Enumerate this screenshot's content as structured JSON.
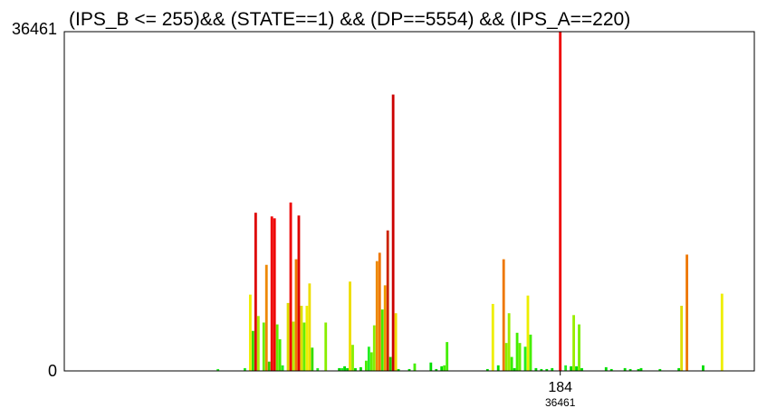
{
  "chart_data": {
    "type": "bar",
    "title": "(IPS_B <= 255)&& (STATE==1) && (DP==5554) && (IPS_A==220)",
    "xlabel": "",
    "ylabel": "",
    "ylim": [
      0,
      36461
    ],
    "y_tick_labels": [
      "36461",
      "0"
    ],
    "x_tick_label": "184",
    "x_tick_value": 184,
    "x_sublabel": "36461",
    "xlim": [
      0,
      256
    ],
    "grid": false,
    "legend": "none",
    "colors": {
      "low": "#00dd00",
      "mid_low": "#88ff00",
      "mid": "#ffee00",
      "mid_high": "#ff7700",
      "high": "#ee0000"
    },
    "bars": [
      {
        "x": 57,
        "value": 200,
        "color": "#22ee22"
      },
      {
        "x": 67,
        "value": 300,
        "color": "#22ee22"
      },
      {
        "x": 69,
        "value": 8200,
        "color": "#eeee00"
      },
      {
        "x": 70,
        "value": 4300,
        "color": "#33dd00"
      },
      {
        "x": 71,
        "value": 17000,
        "color": "#dd0000"
      },
      {
        "x": 72,
        "value": 5900,
        "color": "#aaee00"
      },
      {
        "x": 74,
        "value": 5200,
        "color": "#66ee00"
      },
      {
        "x": 75,
        "value": 11400,
        "color": "#ee8800"
      },
      {
        "x": 76,
        "value": 1000,
        "color": "#33cc00"
      },
      {
        "x": 77,
        "value": 16600,
        "color": "#ee0000"
      },
      {
        "x": 78,
        "value": 16400,
        "color": "#ee0000"
      },
      {
        "x": 79,
        "value": 5000,
        "color": "#66ee00"
      },
      {
        "x": 80,
        "value": 3400,
        "color": "#44ee00"
      },
      {
        "x": 81,
        "value": 600,
        "color": "#22ee22"
      },
      {
        "x": 83,
        "value": 7300,
        "color": "#dddd00"
      },
      {
        "x": 84,
        "value": 18100,
        "color": "#ee0000"
      },
      {
        "x": 85,
        "value": 5300,
        "color": "#bbee00"
      },
      {
        "x": 86,
        "value": 12000,
        "color": "#ee7700"
      },
      {
        "x": 87,
        "value": 16700,
        "color": "#dd0000"
      },
      {
        "x": 88,
        "value": 7000,
        "color": "#dddd00"
      },
      {
        "x": 89,
        "value": 5200,
        "color": "#66ee00"
      },
      {
        "x": 90,
        "value": 7000,
        "color": "#eeee00"
      },
      {
        "x": 91,
        "value": 9400,
        "color": "#eedd00"
      },
      {
        "x": 92,
        "value": 2500,
        "color": "#33dd00"
      },
      {
        "x": 94,
        "value": 300,
        "color": "#22ee22"
      },
      {
        "x": 97,
        "value": 5200,
        "color": "#88ee00"
      },
      {
        "x": 103,
        "value": 300,
        "color": "#22ee22"
      },
      {
        "x": 106,
        "value": 9600,
        "color": "#eedd00"
      },
      {
        "x": 107,
        "value": 2800,
        "color": "#88ee00"
      },
      {
        "x": 112,
        "value": 1100,
        "color": "#44ee00"
      },
      {
        "x": 113,
        "value": 2600,
        "color": "#22ee22"
      },
      {
        "x": 114,
        "value": 2000,
        "color": "#66ee00"
      },
      {
        "x": 115,
        "value": 4900,
        "color": "#88ee00"
      },
      {
        "x": 116,
        "value": 11800,
        "color": "#ee8800"
      },
      {
        "x": 117,
        "value": 12700,
        "color": "#ee7700"
      },
      {
        "x": 118,
        "value": 6600,
        "color": "#44ee00"
      },
      {
        "x": 119,
        "value": 9200,
        "color": "#ee9900"
      },
      {
        "x": 120,
        "value": 15100,
        "color": "#cc2200"
      },
      {
        "x": 121,
        "value": 1500,
        "color": "#22cc00"
      },
      {
        "x": 122,
        "value": 29700,
        "color": "#cc0000"
      },
      {
        "x": 123,
        "value": 6200,
        "color": "#eedd00"
      },
      {
        "x": 130,
        "value": 800,
        "color": "#44ee00"
      },
      {
        "x": 141,
        "value": 600,
        "color": "#44ee00"
      },
      {
        "x": 142,
        "value": 3100,
        "color": "#44ee00"
      },
      {
        "x": 159,
        "value": 7200,
        "color": "#eeee00"
      },
      {
        "x": 163,
        "value": 12000,
        "color": "#ee7700"
      },
      {
        "x": 164,
        "value": 3000,
        "color": "#88ee00"
      },
      {
        "x": 165,
        "value": 6200,
        "color": "#99ee00"
      },
      {
        "x": 166,
        "value": 1500,
        "color": "#33ee00"
      },
      {
        "x": 168,
        "value": 4100,
        "color": "#44ee00"
      },
      {
        "x": 169,
        "value": 3000,
        "color": "#66ee00"
      },
      {
        "x": 171,
        "value": 2600,
        "color": "#22ee22"
      },
      {
        "x": 172,
        "value": 8100,
        "color": "#eeee00"
      },
      {
        "x": 173,
        "value": 3900,
        "color": "#44ee00"
      },
      {
        "x": 184,
        "value": 36461,
        "color": "#ee0000"
      },
      {
        "x": 186,
        "value": 600,
        "color": "#22ee22"
      },
      {
        "x": 189,
        "value": 6000,
        "color": "#99ee00"
      },
      {
        "x": 191,
        "value": 5000,
        "color": "#77ee00"
      },
      {
        "x": 229,
        "value": 7000,
        "color": "#dddd00"
      },
      {
        "x": 231,
        "value": 12500,
        "color": "#ee7700"
      },
      {
        "x": 244,
        "value": 8300,
        "color": "#eeee00"
      }
    ],
    "small_bars": [
      {
        "x": 102,
        "value": 300
      },
      {
        "x": 104,
        "value": 500
      },
      {
        "x": 105,
        "value": 300
      },
      {
        "x": 108,
        "value": 300
      },
      {
        "x": 110,
        "value": 400
      },
      {
        "x": 124,
        "value": 200
      },
      {
        "x": 128,
        "value": 200
      },
      {
        "x": 136,
        "value": 900
      },
      {
        "x": 138,
        "value": 200
      },
      {
        "x": 140,
        "value": 500
      },
      {
        "x": 157,
        "value": 200
      },
      {
        "x": 161,
        "value": 600
      },
      {
        "x": 167,
        "value": 300
      },
      {
        "x": 175,
        "value": 300
      },
      {
        "x": 177,
        "value": 200
      },
      {
        "x": 179,
        "value": 200
      },
      {
        "x": 181,
        "value": 300
      },
      {
        "x": 188,
        "value": 500
      },
      {
        "x": 190,
        "value": 500
      },
      {
        "x": 192,
        "value": 300
      },
      {
        "x": 201,
        "value": 400
      },
      {
        "x": 203,
        "value": 200
      },
      {
        "x": 208,
        "value": 300
      },
      {
        "x": 210,
        "value": 200
      },
      {
        "x": 213,
        "value": 200
      },
      {
        "x": 214,
        "value": 300
      },
      {
        "x": 221,
        "value": 200
      },
      {
        "x": 228,
        "value": 300
      },
      {
        "x": 237,
        "value": 600
      }
    ]
  }
}
